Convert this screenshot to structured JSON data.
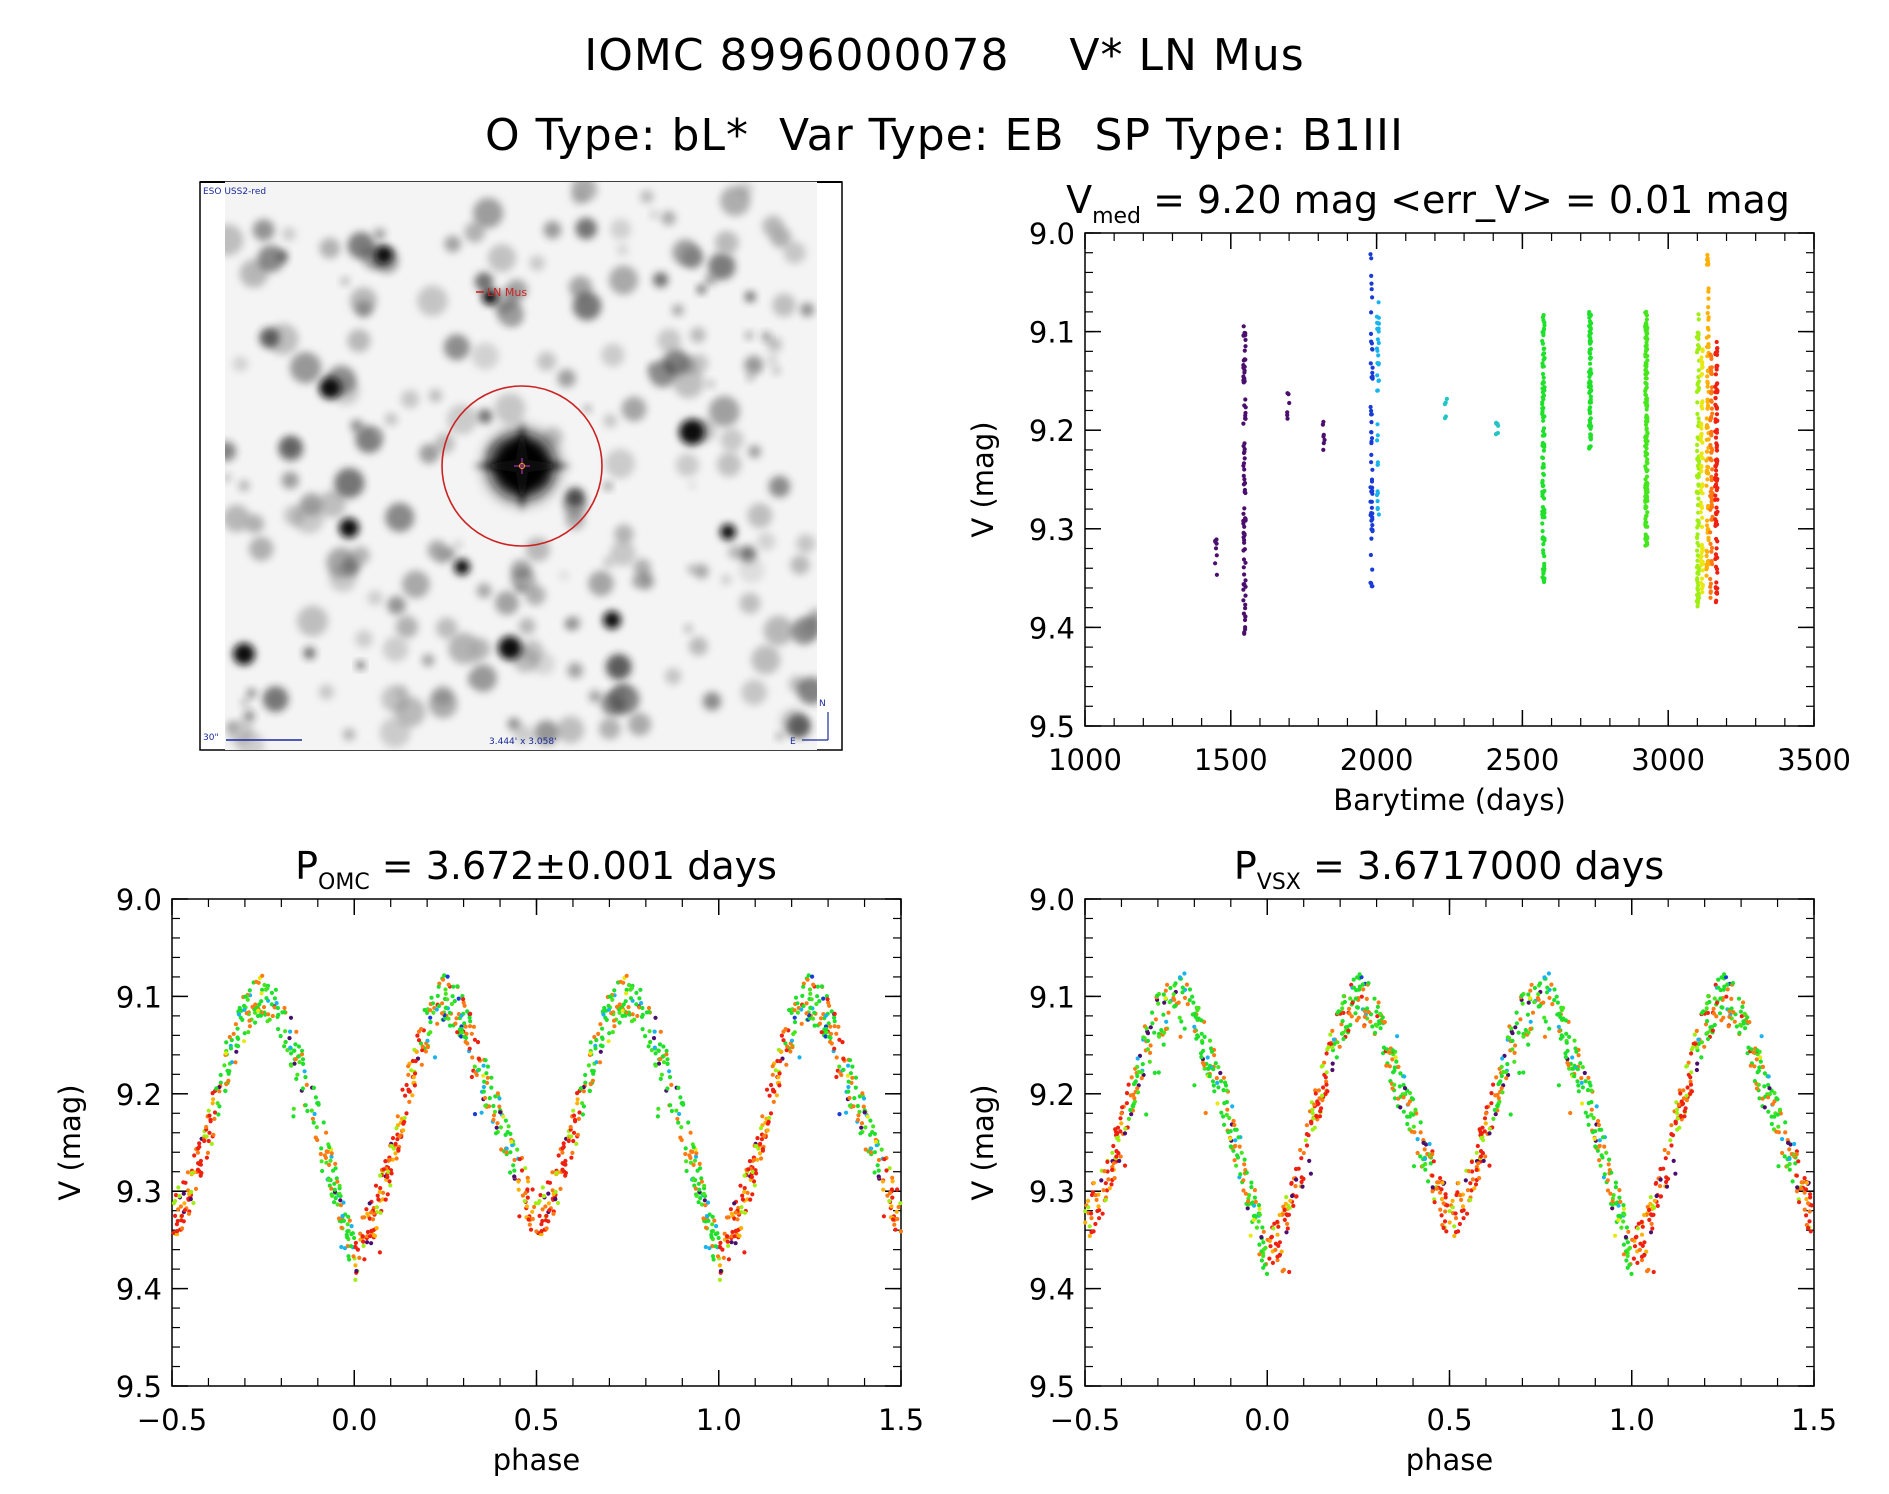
{
  "header": {
    "title_line1": "IOMC 8996000078    V* LN Mus",
    "title_line2": "O Type: bL*  Var Type: EB  SP Type: B1III"
  },
  "finder_chart": {
    "survey_label": "ESO USS2-red",
    "target_label": "LN Mus",
    "scale_label": "30\"",
    "fov_label": "3.444' x 3.058'",
    "north_label": "N",
    "east_label": "E",
    "colors": {
      "circle": "#cc2222",
      "scale": "#1a2a9a"
    }
  },
  "colors": {
    "palette": [
      "#4b0e6e",
      "#1a3cd6",
      "#19b4f0",
      "#22c4c4",
      "#1fe02a",
      "#46e61e",
      "#a0ef14",
      "#e8e812",
      "#ffb000",
      "#ff7a10",
      "#f02010"
    ]
  },
  "chart_data": [
    {
      "type": "scatter",
      "id": "lightcurve",
      "title_main": "V",
      "title_sub": "med",
      "title_rest": " = 9.20 mag <err_V> = 0.01 mag",
      "xlabel": "Barytime (days)",
      "ylabel": "V (mag)",
      "xlim": [
        1000,
        3500
      ],
      "ylim": [
        9.0,
        9.5
      ],
      "y_inverted": true,
      "xticks": [
        1000,
        1500,
        2000,
        2500,
        3000,
        3500
      ],
      "xtick_labels": [
        "1000",
        "1500",
        "2000",
        "2500",
        "3000",
        "3500"
      ],
      "yticks": [
        9.0,
        9.1,
        9.2,
        9.3,
        9.4,
        9.5
      ],
      "ytick_labels": [
        "9.0",
        "9.1",
        "9.2",
        "9.3",
        "9.4",
        "9.5"
      ],
      "groups": [
        {
          "t": 1450,
          "min": 9.31,
          "max": 9.35,
          "n": 8,
          "c": 0
        },
        {
          "t": 1547,
          "min": 9.09,
          "max": 9.41,
          "n": 90,
          "c": 0
        },
        {
          "t": 1697,
          "min": 9.16,
          "max": 9.19,
          "n": 6,
          "c": 0
        },
        {
          "t": 1820,
          "min": 9.17,
          "max": 9.22,
          "n": 7,
          "c": 0
        },
        {
          "t": 1983,
          "min": 9.02,
          "max": 9.36,
          "n": 60,
          "c": 1
        },
        {
          "t": 2005,
          "min": 9.06,
          "max": 9.29,
          "n": 35,
          "c": 2
        },
        {
          "t": 2238,
          "min": 9.15,
          "max": 9.19,
          "n": 5,
          "c": 3
        },
        {
          "t": 2413,
          "min": 9.19,
          "max": 9.21,
          "n": 6,
          "c": 3
        },
        {
          "t": 2572,
          "min": 9.08,
          "max": 9.36,
          "n": 110,
          "c": 4
        },
        {
          "t": 2732,
          "min": 9.08,
          "max": 9.22,
          "n": 90,
          "c": 4
        },
        {
          "t": 2925,
          "min": 9.08,
          "max": 9.32,
          "n": 150,
          "c": 5
        },
        {
          "t": 3102,
          "min": 9.08,
          "max": 9.38,
          "n": 100,
          "c": 6
        },
        {
          "t": 3115,
          "min": 9.11,
          "max": 9.37,
          "n": 60,
          "c": 7
        },
        {
          "t": 3135,
          "min": 9.02,
          "max": 9.35,
          "n": 80,
          "c": 8
        },
        {
          "t": 3148,
          "min": 9.12,
          "max": 9.37,
          "n": 60,
          "c": 9
        },
        {
          "t": 3165,
          "min": 9.11,
          "max": 9.38,
          "n": 90,
          "c": 10
        }
      ]
    },
    {
      "type": "scatter",
      "id": "phase_omc",
      "title_main": "P",
      "title_sub": "OMC",
      "title_rest": " = 3.672±0.001 days",
      "xlabel": "phase",
      "ylabel": "V (mag)",
      "period_days": 3.672,
      "xlim": [
        -0.5,
        1.5
      ],
      "ylim": [
        9.0,
        9.5
      ],
      "y_inverted": true,
      "xticks": [
        -0.5,
        0.0,
        0.5,
        1.0,
        1.5
      ],
      "xtick_labels": [
        "−0.5",
        "0.0",
        "0.5",
        "1.0",
        "1.5"
      ],
      "yticks": [
        9.0,
        9.1,
        9.2,
        9.3,
        9.4,
        9.5
      ],
      "ytick_labels": [
        "9.0",
        "9.1",
        "9.2",
        "9.3",
        "9.4",
        "9.5"
      ],
      "template_phase": [
        0.0,
        0.05,
        0.1,
        0.15,
        0.2,
        0.25,
        0.3,
        0.35,
        0.4,
        0.45,
        0.5,
        0.55,
        0.6,
        0.65,
        0.7,
        0.75,
        0.8,
        0.85,
        0.9,
        0.95,
        1.0
      ],
      "template_mag": [
        9.37,
        9.33,
        9.27,
        9.19,
        9.13,
        9.1,
        9.12,
        9.18,
        9.23,
        9.28,
        9.33,
        9.3,
        9.24,
        9.17,
        9.12,
        9.1,
        9.12,
        9.17,
        9.23,
        9.3,
        9.37
      ]
    },
    {
      "type": "scatter",
      "id": "phase_vsx",
      "title_main": "P",
      "title_sub": "VSX",
      "title_rest": " = 3.6717000 days",
      "xlabel": "phase",
      "ylabel": "V (mag)",
      "period_days": 3.6717,
      "xlim": [
        -0.5,
        1.5
      ],
      "ylim": [
        9.0,
        9.5
      ],
      "y_inverted": true,
      "xticks": [
        -0.5,
        0.0,
        0.5,
        1.0,
        1.5
      ],
      "xtick_labels": [
        "−0.5",
        "0.0",
        "0.5",
        "1.0",
        "1.5"
      ],
      "yticks": [
        9.0,
        9.1,
        9.2,
        9.3,
        9.4,
        9.5
      ],
      "ytick_labels": [
        "9.0",
        "9.1",
        "9.2",
        "9.3",
        "9.4",
        "9.5"
      ],
      "template_phase": [
        0.0,
        0.05,
        0.1,
        0.15,
        0.2,
        0.25,
        0.3,
        0.35,
        0.4,
        0.45,
        0.5,
        0.55,
        0.6,
        0.65,
        0.7,
        0.75,
        0.8,
        0.85,
        0.9,
        0.95,
        1.0
      ],
      "template_mag": [
        9.37,
        9.33,
        9.27,
        9.19,
        9.13,
        9.1,
        9.12,
        9.18,
        9.23,
        9.28,
        9.33,
        9.3,
        9.24,
        9.17,
        9.12,
        9.1,
        9.12,
        9.17,
        9.23,
        9.3,
        9.37
      ]
    }
  ]
}
